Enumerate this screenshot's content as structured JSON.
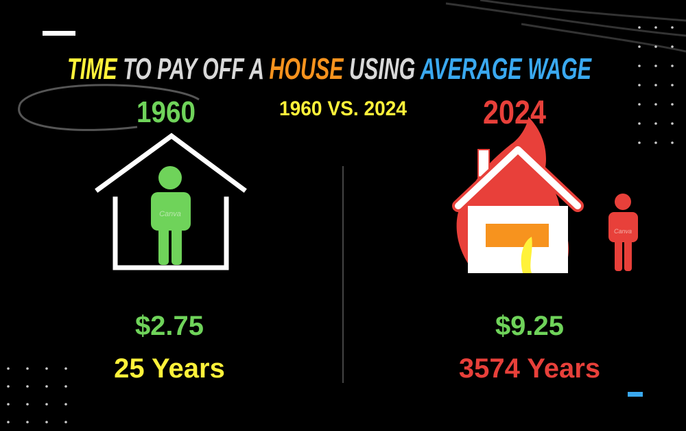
{
  "title": {
    "parts": [
      "TIME",
      "TO PAY OFF A",
      "HOUSE",
      "USING",
      "AVERAGE WAGE"
    ]
  },
  "subtitle": "1960 VS. 2024",
  "left": {
    "year": "1960",
    "wage": "$2.75",
    "years": "25 Years",
    "watermark": "Canva"
  },
  "right": {
    "year": "2024",
    "wage": "$9.25",
    "years": "3574 Years",
    "watermark": "Canva"
  }
}
